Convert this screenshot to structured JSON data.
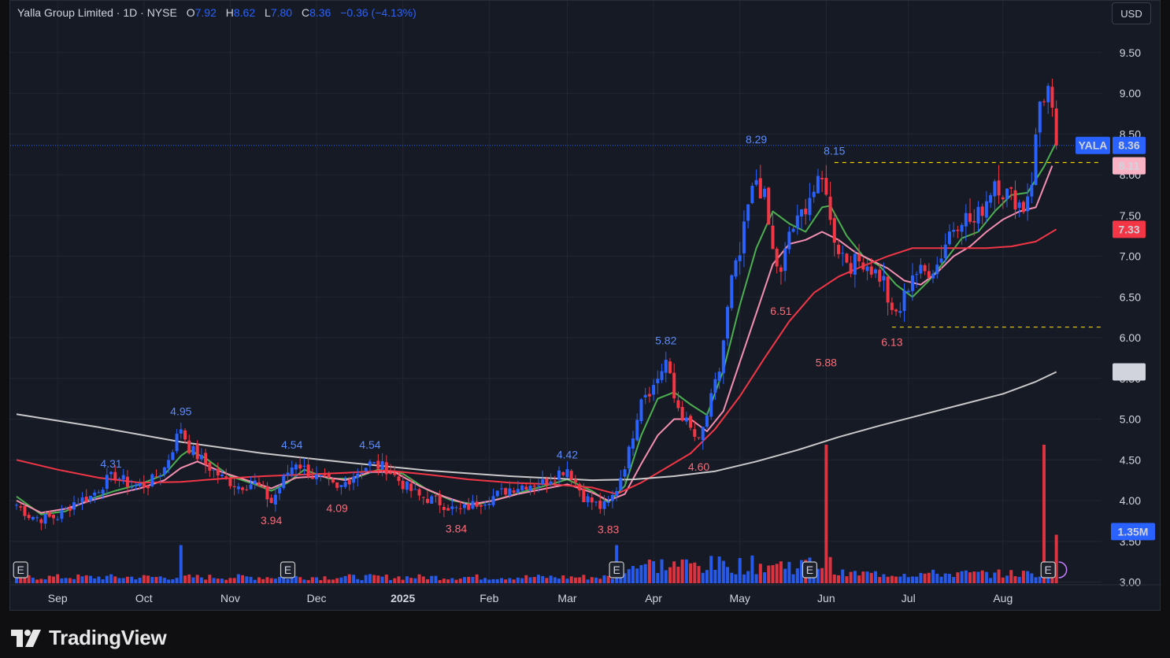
{
  "header": {
    "symbol_name": "Yalla Group Limited · 1D · NYSE",
    "open_label": "O",
    "open": "7.92",
    "high_label": "H",
    "high": "8.62",
    "low_label": "L",
    "low": "7.80",
    "close_label": "C",
    "close": "8.36",
    "change": "−0.36 (−4.13%)"
  },
  "currency_button": "USD",
  "brand": {
    "name": "TradingView",
    "logo_icon": "tradingview-logo-icon"
  },
  "colors": {
    "up": "#2962ff",
    "down": "#f23645",
    "sma_fast": "#4caf50",
    "ema_mid": "#f48fb1",
    "ma_slow": "#f23645",
    "ma_200": "#c9c9c9"
  },
  "chart_data": {
    "type": "candlestick",
    "ticker": "YALA",
    "price_axis_ticks": [
      "9.50",
      "9.00",
      "8.50",
      "8.00",
      "7.50",
      "7.00",
      "6.50",
      "6.00",
      "5.50",
      "5.00",
      "4.50",
      "4.00",
      "3.50",
      "3.00"
    ],
    "price_ylim": [
      3.0,
      9.75
    ],
    "months": [
      {
        "label": "Sep",
        "day": 10
      },
      {
        "label": "Oct",
        "day": 31
      },
      {
        "label": "Nov",
        "day": 52
      },
      {
        "label": "Dec",
        "day": 73
      },
      {
        "label": "2025",
        "day": 94
      },
      {
        "label": "Feb",
        "day": 115
      },
      {
        "label": "Mar",
        "day": 134
      },
      {
        "label": "Apr",
        "day": 155
      },
      {
        "label": "May",
        "day": 176
      },
      {
        "label": "Jun",
        "day": 197
      },
      {
        "label": "Jul",
        "day": 217
      },
      {
        "label": "Aug",
        "day": 240
      }
    ],
    "price_badges": [
      {
        "text": "YALA",
        "price": 8.36,
        "kind": "ticker"
      },
      {
        "text": "8.36",
        "price": 8.36,
        "kind": "last"
      },
      {
        "text": "8.11",
        "price": 8.11,
        "kind": "ma_fast"
      },
      {
        "text": "7.33",
        "price": 7.33,
        "kind": "ma_slow"
      },
      {
        "text": "5.58",
        "price": 5.58,
        "kind": "ma_200"
      },
      {
        "text": "1.35M",
        "price": 3.62,
        "kind": "volume"
      }
    ],
    "high_low_labels": [
      {
        "text": "4.31",
        "day": 23,
        "price": 4.31,
        "type": "high"
      },
      {
        "text": "4.95",
        "day": 40,
        "price": 4.95,
        "type": "high"
      },
      {
        "text": "3.94",
        "day": 62,
        "price": 3.94,
        "type": "low"
      },
      {
        "text": "4.54",
        "day": 67,
        "price": 4.54,
        "type": "high"
      },
      {
        "text": "4.09",
        "day": 78,
        "price": 4.09,
        "type": "low"
      },
      {
        "text": "4.54",
        "day": 86,
        "price": 4.54,
        "type": "high"
      },
      {
        "text": "3.84",
        "day": 107,
        "price": 3.84,
        "type": "low"
      },
      {
        "text": "4.42",
        "day": 134,
        "price": 4.42,
        "type": "high"
      },
      {
        "text": "3.83",
        "day": 144,
        "price": 3.83,
        "type": "low"
      },
      {
        "text": "5.82",
        "day": 158,
        "price": 5.82,
        "type": "high"
      },
      {
        "text": "4.60",
        "day": 166,
        "price": 4.6,
        "type": "low"
      },
      {
        "text": "8.29",
        "day": 180,
        "price": 8.29,
        "type": "high"
      },
      {
        "text": "6.51",
        "day": 186,
        "price": 6.51,
        "type": "low"
      },
      {
        "text": "8.15",
        "day": 199,
        "price": 8.15,
        "type": "high"
      },
      {
        "text": "5.88",
        "day": 197,
        "price": 5.88,
        "type": "low"
      },
      {
        "text": "6.13",
        "day": 213,
        "price": 6.13,
        "type": "low"
      }
    ],
    "reference_lines": [
      {
        "price": 8.15,
        "from_day": 199,
        "to_day": 265
      },
      {
        "price": 6.13,
        "from_day": 213,
        "to_day": 265
      }
    ],
    "last_price_line": 8.36,
    "earnings_markers": [
      {
        "label": "E",
        "day": 1
      },
      {
        "label": "E",
        "day": 66
      },
      {
        "label": "E",
        "day": 146
      },
      {
        "label": "E",
        "day": 193
      },
      {
        "label": "E",
        "day": 251
      }
    ],
    "ohlc_keypoints": [
      [
        0,
        3.95
      ],
      [
        3,
        3.82
      ],
      [
        6,
        3.78
      ],
      [
        10,
        3.8
      ],
      [
        14,
        3.98
      ],
      [
        18,
        4.05
      ],
      [
        22,
        4.25
      ],
      [
        24,
        4.31
      ],
      [
        28,
        4.18
      ],
      [
        32,
        4.2
      ],
      [
        36,
        4.4
      ],
      [
        40,
        4.9
      ],
      [
        42,
        4.65
      ],
      [
        46,
        4.45
      ],
      [
        50,
        4.28
      ],
      [
        54,
        4.18
      ],
      [
        58,
        4.22
      ],
      [
        62,
        3.98
      ],
      [
        66,
        4.35
      ],
      [
        68,
        4.48
      ],
      [
        72,
        4.3
      ],
      [
        76,
        4.22
      ],
      [
        78,
        4.12
      ],
      [
        82,
        4.32
      ],
      [
        86,
        4.45
      ],
      [
        90,
        4.4
      ],
      [
        94,
        4.2
      ],
      [
        98,
        4.05
      ],
      [
        102,
        4.0
      ],
      [
        106,
        3.9
      ],
      [
        108,
        3.88
      ],
      [
        112,
        3.97
      ],
      [
        116,
        4.05
      ],
      [
        120,
        4.15
      ],
      [
        124,
        4.2
      ],
      [
        128,
        4.22
      ],
      [
        132,
        4.35
      ],
      [
        134,
        4.4
      ],
      [
        138,
        4.05
      ],
      [
        142,
        3.92
      ],
      [
        144,
        3.95
      ],
      [
        146,
        4.15
      ],
      [
        149,
        4.6
      ],
      [
        152,
        5.3
      ],
      [
        155,
        5.4
      ],
      [
        158,
        5.72
      ],
      [
        160,
        5.25
      ],
      [
        163,
        4.95
      ],
      [
        166,
        4.7
      ],
      [
        168,
        5.05
      ],
      [
        171,
        5.6
      ],
      [
        174,
        6.7
      ],
      [
        176,
        7.0
      ],
      [
        178,
        7.6
      ],
      [
        180,
        7.95
      ],
      [
        182,
        7.7
      ],
      [
        184,
        7.05
      ],
      [
        186,
        6.75
      ],
      [
        188,
        7.3
      ],
      [
        190,
        7.4
      ],
      [
        193,
        7.75
      ],
      [
        196,
        7.9
      ],
      [
        197,
        7.85
      ],
      [
        198,
        7.4
      ],
      [
        200,
        7.1
      ],
      [
        203,
        6.9
      ],
      [
        206,
        6.95
      ],
      [
        209,
        6.8
      ],
      [
        211,
        6.7
      ],
      [
        213,
        6.25
      ],
      [
        215,
        6.35
      ],
      [
        218,
        6.8
      ],
      [
        221,
        6.8
      ],
      [
        224,
        6.9
      ],
      [
        227,
        7.3
      ],
      [
        230,
        7.5
      ],
      [
        233,
        7.4
      ],
      [
        236,
        7.7
      ],
      [
        238,
        7.95
      ],
      [
        240,
        7.8
      ],
      [
        243,
        7.7
      ],
      [
        245,
        7.6
      ],
      [
        247,
        7.95
      ],
      [
        249,
        8.9
      ],
      [
        251,
        9.05
      ],
      [
        253,
        8.36
      ]
    ],
    "overlays": {
      "ma_fast": [
        [
          0,
          4.05
        ],
        [
          6,
          3.83
        ],
        [
          12,
          3.87
        ],
        [
          18,
          4.02
        ],
        [
          24,
          4.12
        ],
        [
          30,
          4.2
        ],
        [
          36,
          4.32
        ],
        [
          40,
          4.55
        ],
        [
          42,
          4.62
        ],
        [
          46,
          4.52
        ],
        [
          52,
          4.3
        ],
        [
          58,
          4.2
        ],
        [
          62,
          4.12
        ],
        [
          66,
          4.22
        ],
        [
          70,
          4.38
        ],
        [
          76,
          4.27
        ],
        [
          82,
          4.27
        ],
        [
          88,
          4.38
        ],
        [
          94,
          4.33
        ],
        [
          100,
          4.13
        ],
        [
          106,
          4.0
        ],
        [
          112,
          3.95
        ],
        [
          118,
          4.03
        ],
        [
          124,
          4.12
        ],
        [
          130,
          4.2
        ],
        [
          134,
          4.26
        ],
        [
          140,
          4.12
        ],
        [
          144,
          3.98
        ],
        [
          148,
          4.18
        ],
        [
          152,
          4.8
        ],
        [
          156,
          5.25
        ],
        [
          160,
          5.33
        ],
        [
          164,
          5.18
        ],
        [
          168,
          5.05
        ],
        [
          172,
          5.6
        ],
        [
          176,
          6.4
        ],
        [
          180,
          7.1
        ],
        [
          184,
          7.55
        ],
        [
          188,
          7.4
        ],
        [
          192,
          7.3
        ],
        [
          196,
          7.6
        ],
        [
          198,
          7.62
        ],
        [
          202,
          7.25
        ],
        [
          206,
          7.0
        ],
        [
          210,
          6.88
        ],
        [
          214,
          6.65
        ],
        [
          218,
          6.5
        ],
        [
          222,
          6.7
        ],
        [
          226,
          6.95
        ],
        [
          230,
          7.22
        ],
        [
          234,
          7.3
        ],
        [
          238,
          7.55
        ],
        [
          242,
          7.75
        ],
        [
          246,
          7.78
        ],
        [
          250,
          8.1
        ],
        [
          253,
          8.4
        ]
      ],
      "ema_mid": [
        [
          0,
          4.0
        ],
        [
          6,
          3.85
        ],
        [
          12,
          3.9
        ],
        [
          18,
          4.0
        ],
        [
          24,
          4.08
        ],
        [
          30,
          4.15
        ],
        [
          36,
          4.25
        ],
        [
          40,
          4.4
        ],
        [
          44,
          4.48
        ],
        [
          50,
          4.35
        ],
        [
          56,
          4.25
        ],
        [
          62,
          4.15
        ],
        [
          68,
          4.28
        ],
        [
          74,
          4.3
        ],
        [
          80,
          4.25
        ],
        [
          86,
          4.35
        ],
        [
          92,
          4.35
        ],
        [
          98,
          4.18
        ],
        [
          104,
          4.05
        ],
        [
          110,
          3.95
        ],
        [
          116,
          4.0
        ],
        [
          122,
          4.08
        ],
        [
          128,
          4.14
        ],
        [
          134,
          4.2
        ],
        [
          140,
          4.1
        ],
        [
          144,
          4.0
        ],
        [
          148,
          4.08
        ],
        [
          152,
          4.45
        ],
        [
          156,
          4.8
        ],
        [
          160,
          5.0
        ],
        [
          164,
          5.0
        ],
        [
          168,
          4.85
        ],
        [
          172,
          5.1
        ],
        [
          176,
          5.7
        ],
        [
          180,
          6.3
        ],
        [
          184,
          6.9
        ],
        [
          188,
          7.15
        ],
        [
          192,
          7.2
        ],
        [
          196,
          7.3
        ],
        [
          200,
          7.2
        ],
        [
          204,
          7.05
        ],
        [
          208,
          6.95
        ],
        [
          212,
          6.85
        ],
        [
          216,
          6.7
        ],
        [
          220,
          6.65
        ],
        [
          224,
          6.8
        ],
        [
          228,
          7.0
        ],
        [
          232,
          7.12
        ],
        [
          236,
          7.3
        ],
        [
          240,
          7.45
        ],
        [
          244,
          7.55
        ],
        [
          248,
          7.6
        ],
        [
          252,
          8.11
        ]
      ],
      "ma_slow": [
        [
          0,
          4.5
        ],
        [
          10,
          4.38
        ],
        [
          20,
          4.28
        ],
        [
          30,
          4.22
        ],
        [
          40,
          4.23
        ],
        [
          50,
          4.27
        ],
        [
          60,
          4.3
        ],
        [
          70,
          4.32
        ],
        [
          80,
          4.34
        ],
        [
          90,
          4.37
        ],
        [
          100,
          4.32
        ],
        [
          110,
          4.26
        ],
        [
          120,
          4.22
        ],
        [
          130,
          4.2
        ],
        [
          140,
          4.16
        ],
        [
          146,
          4.08
        ],
        [
          152,
          4.22
        ],
        [
          158,
          4.4
        ],
        [
          164,
          4.58
        ],
        [
          170,
          4.88
        ],
        [
          176,
          5.28
        ],
        [
          182,
          5.75
        ],
        [
          188,
          6.2
        ],
        [
          194,
          6.55
        ],
        [
          200,
          6.75
        ],
        [
          206,
          6.88
        ],
        [
          212,
          7.0
        ],
        [
          218,
          7.1
        ],
        [
          224,
          7.1
        ],
        [
          230,
          7.1
        ],
        [
          236,
          7.1
        ],
        [
          242,
          7.12
        ],
        [
          248,
          7.18
        ],
        [
          253,
          7.33
        ]
      ],
      "ma_200": [
        [
          0,
          5.06
        ],
        [
          20,
          4.9
        ],
        [
          40,
          4.72
        ],
        [
          60,
          4.58
        ],
        [
          80,
          4.47
        ],
        [
          100,
          4.37
        ],
        [
          120,
          4.3
        ],
        [
          140,
          4.25
        ],
        [
          150,
          4.26
        ],
        [
          160,
          4.3
        ],
        [
          170,
          4.36
        ],
        [
          180,
          4.48
        ],
        [
          190,
          4.62
        ],
        [
          200,
          4.78
        ],
        [
          210,
          4.92
        ],
        [
          220,
          5.05
        ],
        [
          230,
          5.18
        ],
        [
          240,
          5.31
        ],
        [
          248,
          5.46
        ],
        [
          253,
          5.58
        ]
      ]
    },
    "volume_spikes": [
      [
        40,
        2.2
      ],
      [
        146,
        2.2
      ],
      [
        197,
        8.0
      ],
      [
        250,
        8.0
      ],
      [
        253,
        2.8
      ]
    ]
  }
}
